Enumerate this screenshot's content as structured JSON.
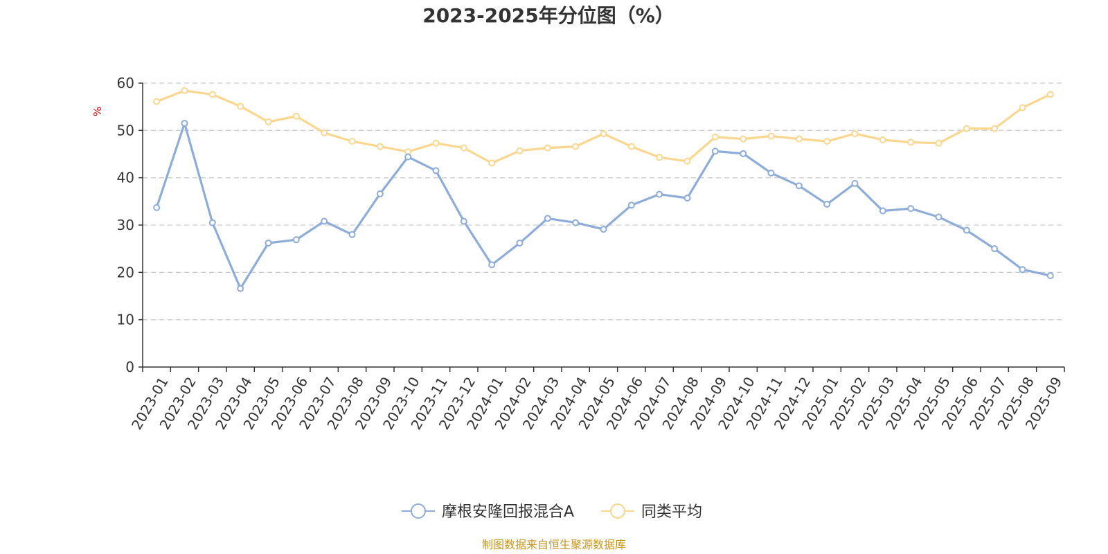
{
  "colors": {
    "series_1": "#8eacd9",
    "series_2": "#fad68e",
    "grid": "#cccccc",
    "axis": "#333333",
    "unit_label": "#e00000",
    "source": "#c8961e"
  },
  "source_text": "制图数据来自恒生聚源数据库",
  "chart_data": {
    "type": "line",
    "title": "2023-2025年分位图（%）",
    "ylabel": "%",
    "xlabel": "",
    "ylim": [
      0,
      60
    ],
    "yticks": [
      0,
      10,
      20,
      30,
      40,
      50,
      60
    ],
    "grid": true,
    "legend_position": "bottom-center",
    "categories": [
      "2023-01",
      "2023-02",
      "2023-03",
      "2023-04",
      "2023-05",
      "2023-06",
      "2023-07",
      "2023-08",
      "2023-09",
      "2023-10",
      "2023-11",
      "2023-12",
      "2024-01",
      "2024-02",
      "2024-03",
      "2024-04",
      "2024-05",
      "2024-06",
      "2024-07",
      "2024-08",
      "2024-09",
      "2024-10",
      "2024-11",
      "2024-12",
      "2025-01",
      "2025-02",
      "2025-03",
      "2025-04",
      "2025-05",
      "2025-06",
      "2025-07",
      "2025-08",
      "2025-09"
    ],
    "series": [
      {
        "name": "摩根安隆回报混合A",
        "values": [
          33.7,
          51.5,
          30.5,
          16.6,
          26.2,
          26.9,
          30.8,
          28.0,
          36.6,
          44.4,
          41.5,
          30.8,
          21.6,
          26.2,
          31.4,
          30.5,
          29.1,
          34.2,
          36.5,
          35.7,
          45.6,
          45.1,
          41.0,
          38.3,
          34.4,
          38.8,
          33.0,
          33.5,
          31.7,
          28.9,
          25.0,
          20.6,
          19.3
        ]
      },
      {
        "name": "同类平均",
        "values": [
          56.1,
          58.4,
          57.6,
          55.1,
          51.8,
          53.0,
          49.5,
          47.7,
          46.6,
          45.5,
          47.3,
          46.3,
          43.1,
          45.7,
          46.3,
          46.6,
          49.3,
          46.6,
          44.3,
          43.5,
          48.6,
          48.2,
          48.8,
          48.2,
          47.7,
          49.3,
          48.0,
          47.5,
          47.3,
          50.4,
          50.4,
          54.8,
          57.6
        ]
      }
    ]
  }
}
